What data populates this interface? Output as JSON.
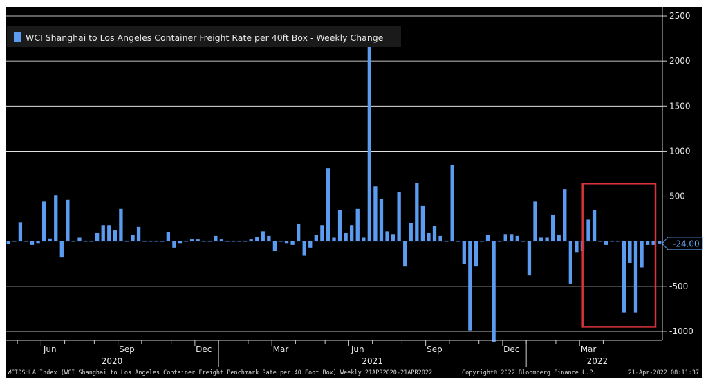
{
  "chart_data": {
    "type": "bar",
    "legend": "WCI Shanghai to Los Angeles Container Freight Rate per 40ft Box - Weekly Change",
    "ylim": [
      -1100,
      2600
    ],
    "yticks": [
      2500,
      2000,
      1500,
      1000,
      500,
      -500,
      -1000
    ],
    "last_value_label": "-24.00",
    "last_value": -24,
    "bar_color": "#5b9bf0",
    "values": [
      -30,
      -10,
      210,
      -10,
      -40,
      -20,
      440,
      30,
      510,
      -180,
      460,
      -10,
      40,
      -5,
      0,
      90,
      180,
      180,
      120,
      360,
      -5,
      70,
      160,
      -10,
      -10,
      -5,
      -10,
      100,
      -70,
      -20,
      10,
      20,
      20,
      10,
      -5,
      60,
      20,
      -5,
      -5,
      -5,
      10,
      20,
      50,
      110,
      60,
      -110,
      -10,
      -20,
      -40,
      190,
      -160,
      -70,
      70,
      180,
      810,
      40,
      350,
      90,
      180,
      360,
      40,
      2190,
      610,
      470,
      110,
      80,
      550,
      -280,
      200,
      650,
      390,
      90,
      170,
      60,
      -10,
      850,
      -5,
      -250,
      -990,
      -280,
      -5,
      70,
      -1120,
      -5,
      80,
      80,
      60,
      -10,
      -380,
      440,
      40,
      40,
      290,
      70,
      580,
      -470,
      -120,
      -110,
      240,
      350,
      -10,
      -40,
      -5,
      -10,
      -790,
      -240,
      -790,
      -290,
      -40,
      -40,
      -24
    ],
    "x_tick_labels": [
      "Jun",
      "Sep",
      "Dec",
      "Mar",
      "Jun",
      "Sep",
      "Dec",
      "Mar"
    ],
    "x_year_labels": [
      "2020",
      "2021",
      "2022"
    ],
    "highlight_box_color": "#d8343a",
    "footer_left": "WCIDSHLA Index (WCI Shanghai to Los Angeles Container Freight Benchmark Rate per 40 Foot Box) Weekly 21APR2020-21APR2022",
    "footer_mid": "Copyright® 2022 Bloomberg Finance L.P.",
    "footer_right": "21-Apr-2022 08:11:37"
  }
}
